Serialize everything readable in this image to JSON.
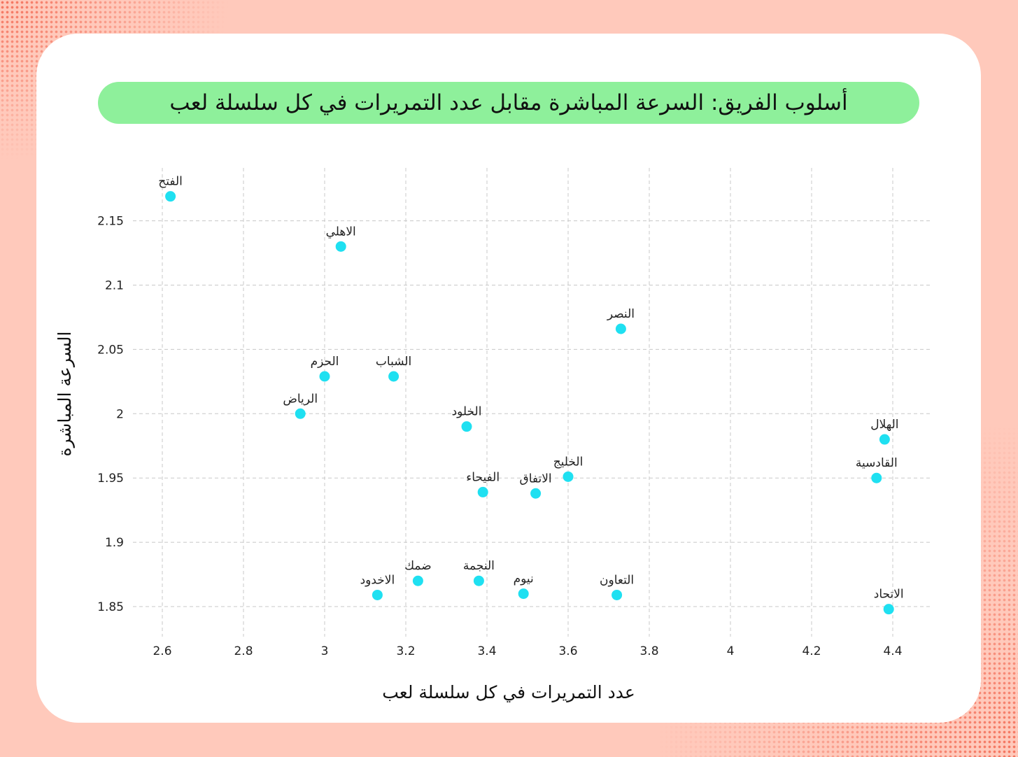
{
  "colors": {
    "background": "#ffc9bb",
    "card": "#ffffff",
    "title_pill": "#8ef09b",
    "point": "#1fe0f1",
    "grid": "#c8c8c8"
  },
  "chart_data": {
    "type": "scatter",
    "title": "أسلوب الفريق: السرعة المباشرة مقابل عدد التمريرات في كل سلسلة لعب",
    "xlabel": "عدد التمريرات في كل سلسلة لعب",
    "ylabel": "السرعة المباشرة",
    "xlim": [
      2.55,
      4.5
    ],
    "ylim": [
      1.825,
      2.19
    ],
    "xticks": [
      2.6,
      2.8,
      3,
      3.2,
      3.4,
      3.6,
      3.8,
      4,
      4.2,
      4.4
    ],
    "xtick_labels": [
      "2.6",
      "2.8",
      "3",
      "3.2",
      "3.4",
      "3.6",
      "3.8",
      "4",
      "4.2",
      "4.4"
    ],
    "yticks": [
      1.85,
      1.9,
      1.95,
      2,
      2.05,
      2.1,
      2.15
    ],
    "ytick_labels": [
      "1.85",
      "1.9",
      "1.95",
      "2",
      "2.05",
      "2.1",
      "2.15"
    ],
    "grid": true,
    "points": [
      {
        "label": "الفتح",
        "x": 2.62,
        "y": 2.169
      },
      {
        "label": "الاهلي",
        "x": 3.04,
        "y": 2.13
      },
      {
        "label": "النصر",
        "x": 3.73,
        "y": 2.066
      },
      {
        "label": "الحزم",
        "x": 3.0,
        "y": 2.029
      },
      {
        "label": "الشباب",
        "x": 3.17,
        "y": 2.029
      },
      {
        "label": "الرياض",
        "x": 2.94,
        "y": 2.0
      },
      {
        "label": "الخلود",
        "x": 3.35,
        "y": 1.99
      },
      {
        "label": "الهلال",
        "x": 4.38,
        "y": 1.98
      },
      {
        "label": "الخليج",
        "x": 3.6,
        "y": 1.951
      },
      {
        "label": "القادسية",
        "x": 4.36,
        "y": 1.95
      },
      {
        "label": "الفيحاء",
        "x": 3.39,
        "y": 1.939
      },
      {
        "label": "الاتفاق",
        "x": 3.52,
        "y": 1.938
      },
      {
        "label": "ضمك",
        "x": 3.23,
        "y": 1.87
      },
      {
        "label": "النجمة",
        "x": 3.38,
        "y": 1.87
      },
      {
        "label": "نيوم",
        "x": 3.49,
        "y": 1.86
      },
      {
        "label": "الاخدود",
        "x": 3.13,
        "y": 1.859
      },
      {
        "label": "التعاون",
        "x": 3.72,
        "y": 1.859
      },
      {
        "label": "الاتحاد",
        "x": 4.39,
        "y": 1.848
      }
    ]
  }
}
